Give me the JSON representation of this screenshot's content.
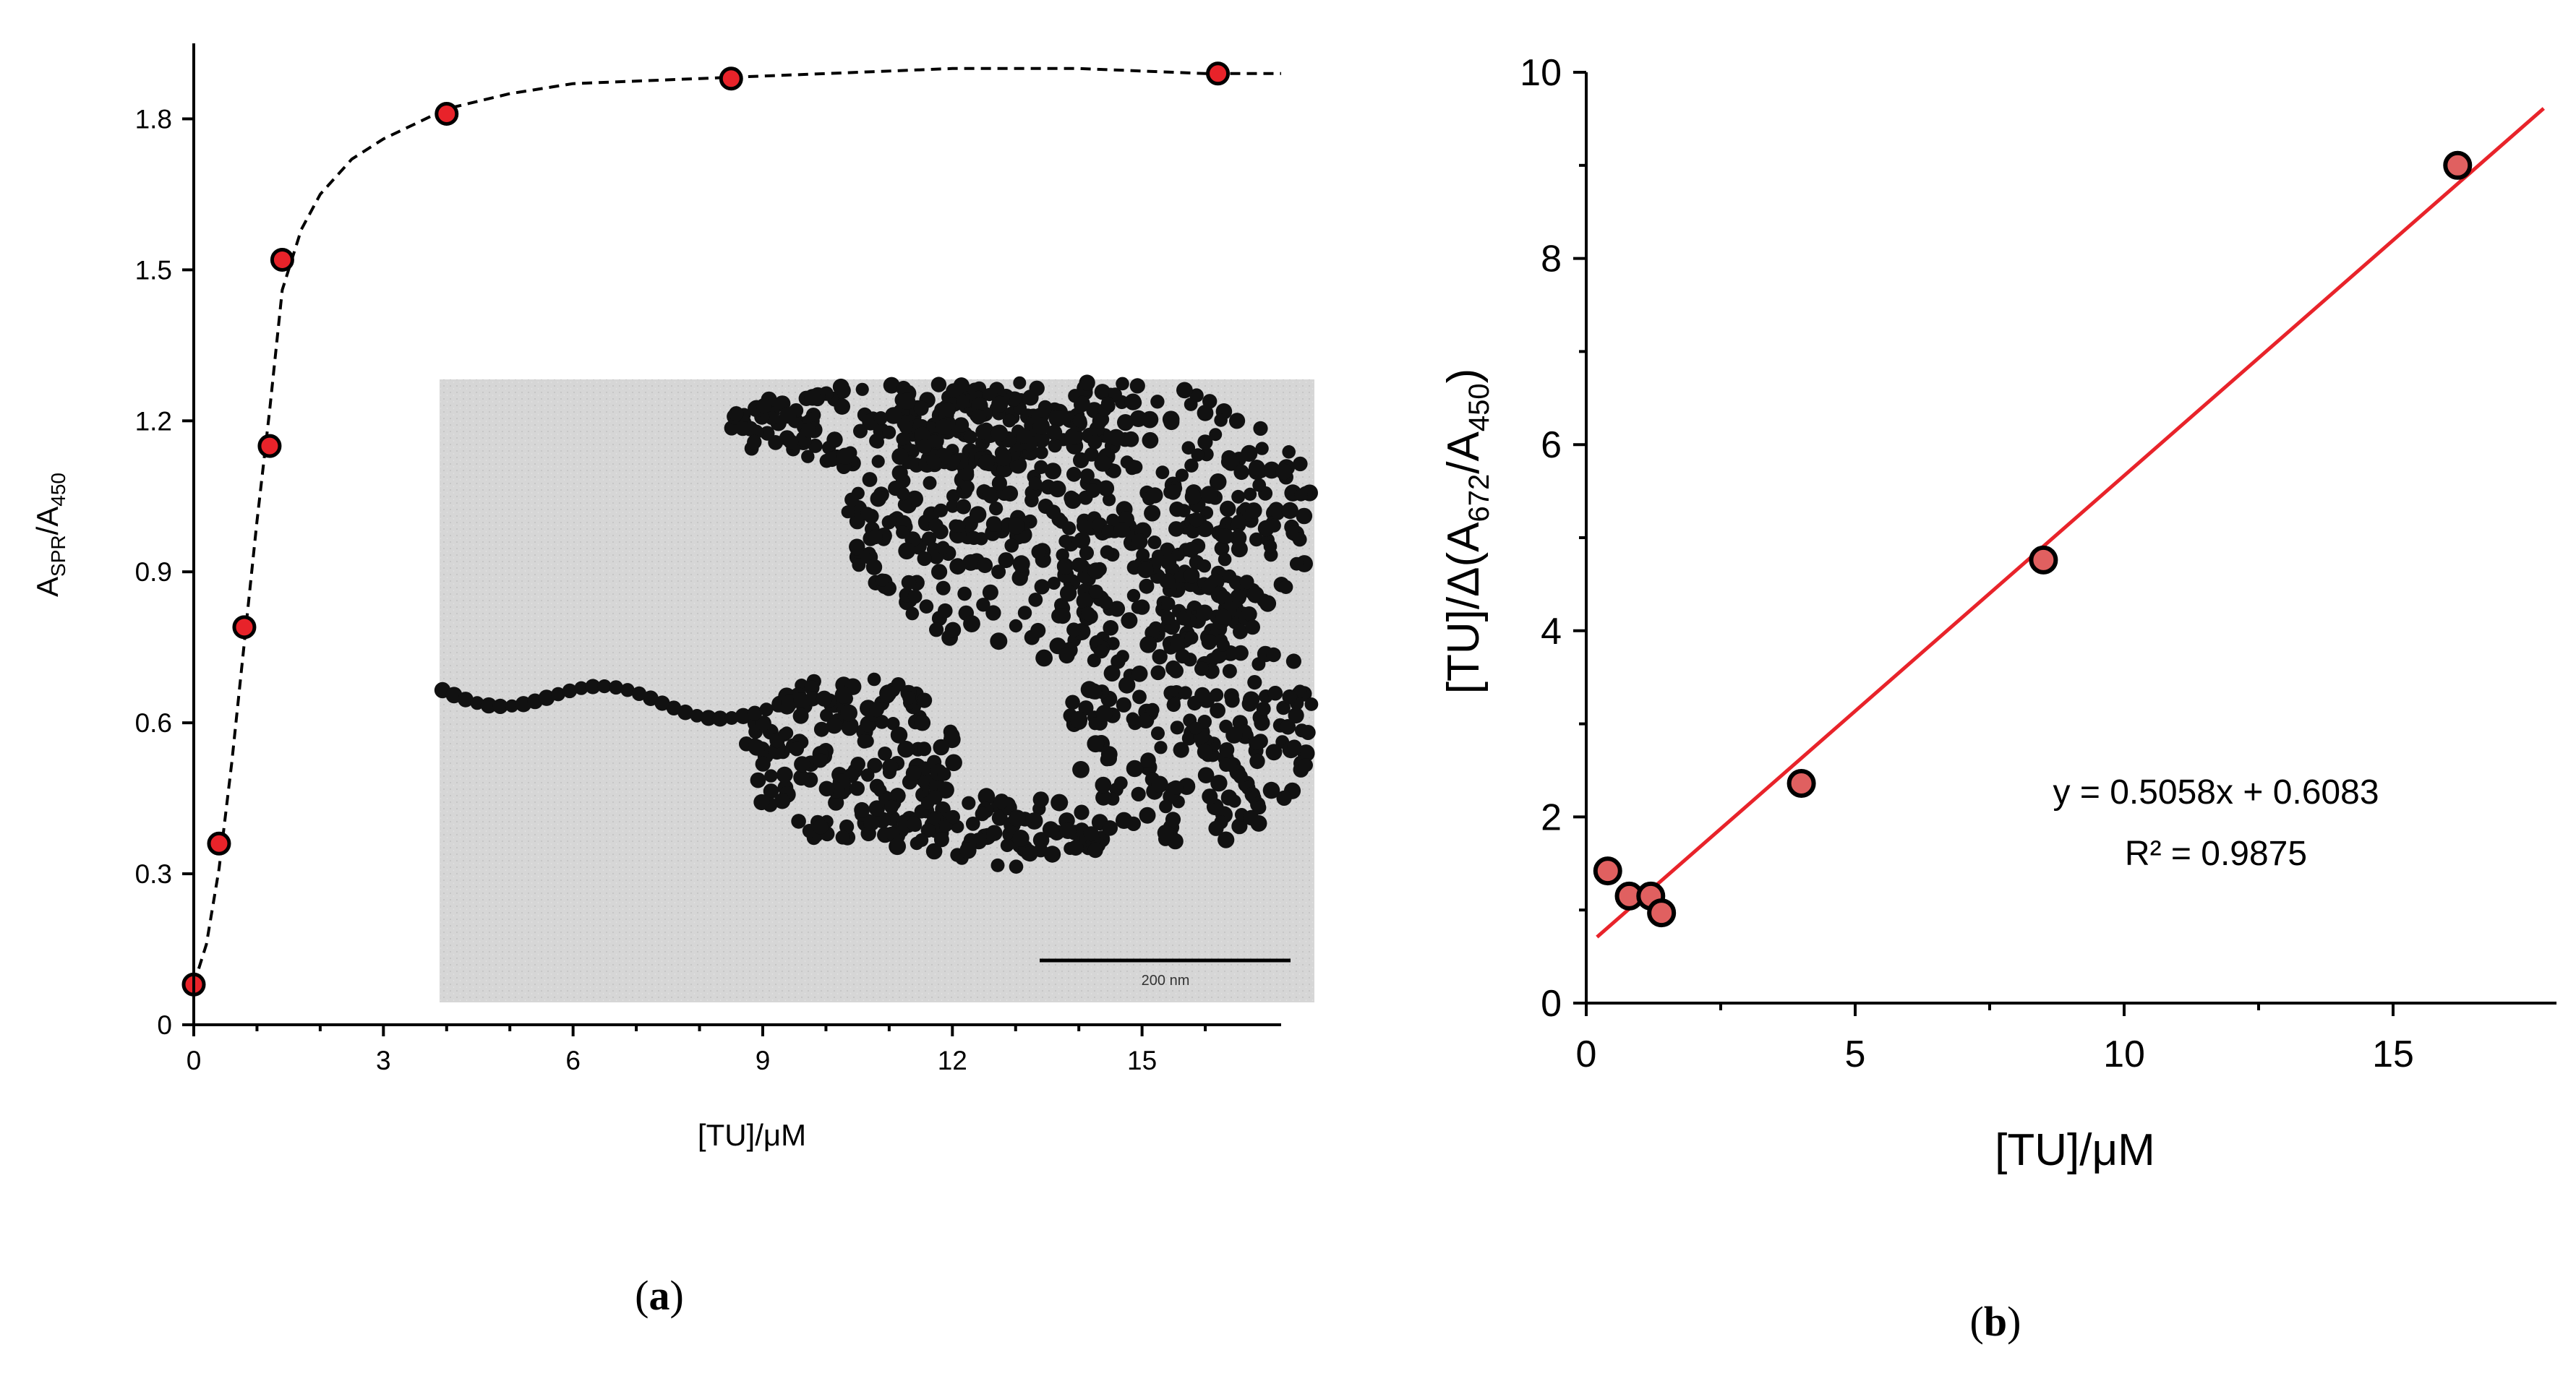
{
  "chart_data": [
    {
      "type": "scatter",
      "panel_label": "a",
      "xlabel": "[TU]/μM",
      "ylabel": {
        "main": "A",
        "sub1": "SPR",
        "mid": "/A",
        "sub2": "450"
      },
      "xlim": [
        0,
        17.2
      ],
      "ylim": [
        0,
        1.95
      ],
      "xticks": [
        0,
        3,
        6,
        9,
        12,
        15
      ],
      "yticks": [
        0,
        0.3,
        0.6,
        0.9,
        1.2,
        1.5,
        1.8
      ],
      "ytick_labels": [
        "0",
        "0.3",
        "0.6",
        "0.9",
        "1.2",
        "1.5",
        "1.8"
      ],
      "series": [
        {
          "x": [
            0.0,
            0.4,
            0.8,
            1.2,
            1.4,
            4.0,
            8.5,
            16.2
          ],
          "y": [
            0.08,
            0.36,
            0.79,
            1.15,
            1.52,
            1.81,
            1.88,
            1.89
          ],
          "marker_color": "#e8232a"
        }
      ],
      "fit_curve": {
        "style": "dashed",
        "x": [
          0,
          0.2,
          0.4,
          0.6,
          0.8,
          1.0,
          1.2,
          1.4,
          1.7,
          2.0,
          2.5,
          3.0,
          4.0,
          5.0,
          6.0,
          8.0,
          10.0,
          12.0,
          14.0,
          16.0,
          17.2
        ],
        "y": [
          0.08,
          0.16,
          0.31,
          0.52,
          0.76,
          1.0,
          1.22,
          1.46,
          1.58,
          1.65,
          1.72,
          1.76,
          1.82,
          1.85,
          1.87,
          1.88,
          1.89,
          1.9,
          1.9,
          1.89,
          1.89
        ]
      },
      "inset": {
        "kind": "TEM micrograph",
        "scale_bar_label": "200 nm"
      }
    },
    {
      "type": "scatter",
      "panel_label": "b",
      "xlabel": "[TU]/μM",
      "ylabel": {
        "pre": "[TU]/Δ(A",
        "sub1": "672",
        "mid": "/A",
        "sub2": "450",
        "post": ")"
      },
      "xlim": [
        0,
        17.5
      ],
      "ylim": [
        0,
        10
      ],
      "xticks": [
        0,
        5,
        10,
        15
      ],
      "yticks": [
        0,
        2,
        4,
        6,
        8,
        10
      ],
      "series": [
        {
          "x": [
            0.4,
            0.8,
            1.2,
            1.4,
            4.0,
            8.5,
            16.2
          ],
          "y": [
            1.42,
            1.15,
            1.15,
            0.97,
            2.36,
            4.76,
            9.0
          ],
          "marker_color": "#e06060"
        }
      ],
      "trendline": {
        "slope": 0.5058,
        "intercept": 0.6083,
        "x_range": [
          0.2,
          17.8
        ],
        "color": "#e8232a"
      },
      "annotation": {
        "equation": "y = 0.5058x + 0.6083",
        "r2": "R² = 0.9875"
      }
    }
  ]
}
